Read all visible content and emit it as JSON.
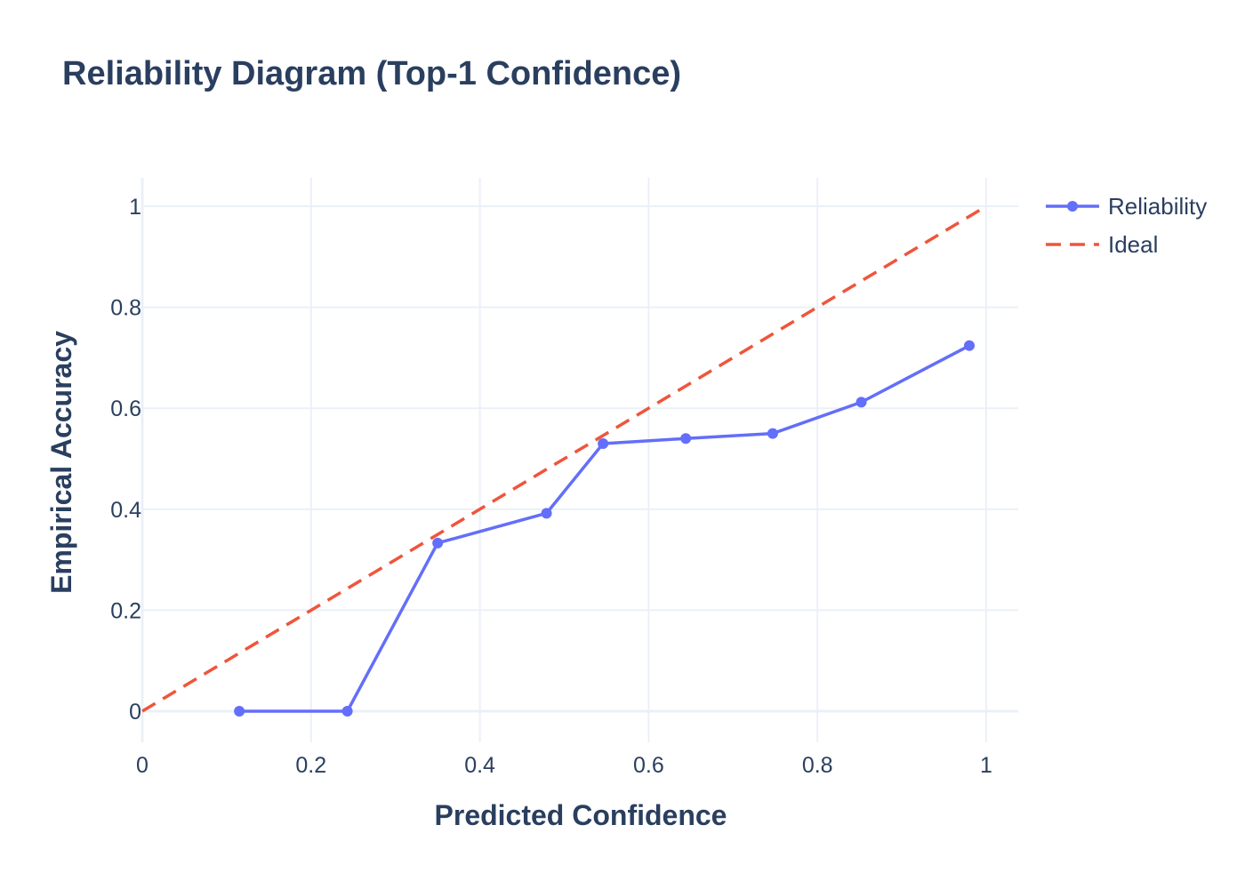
{
  "chart_data": {
    "type": "line",
    "title": "Reliability Diagram (Top-1 Confidence)",
    "xlabel": "Predicted Confidence",
    "ylabel": "Empirical Accuracy",
    "xlim": [
      0,
      1
    ],
    "ylim": [
      -0.05,
      1.05
    ],
    "xticks": [
      0,
      0.2,
      0.4,
      0.6,
      0.8,
      1
    ],
    "yticks": [
      0,
      0.2,
      0.4,
      0.6,
      0.8,
      1
    ],
    "xtick_labels": [
      "0",
      "0.2",
      "0.4",
      "0.6",
      "0.8",
      "1"
    ],
    "ytick_labels": [
      "0",
      "0.2",
      "0.4",
      "0.6",
      "0.8",
      "1"
    ],
    "grid": true,
    "legend_position": "top-right",
    "series": [
      {
        "name": "Reliability",
        "style": "lines+markers",
        "color": "#636efa",
        "x": [
          0.115,
          0.243,
          0.35,
          0.479,
          0.546,
          0.644,
          0.747,
          0.852,
          0.98
        ],
        "y": [
          0.0,
          0.0,
          0.333,
          0.392,
          0.53,
          0.54,
          0.55,
          0.612,
          0.724
        ]
      },
      {
        "name": "Ideal",
        "style": "dash",
        "color": "#ef553b",
        "x": [
          0,
          1
        ],
        "y": [
          0,
          1
        ]
      }
    ]
  }
}
